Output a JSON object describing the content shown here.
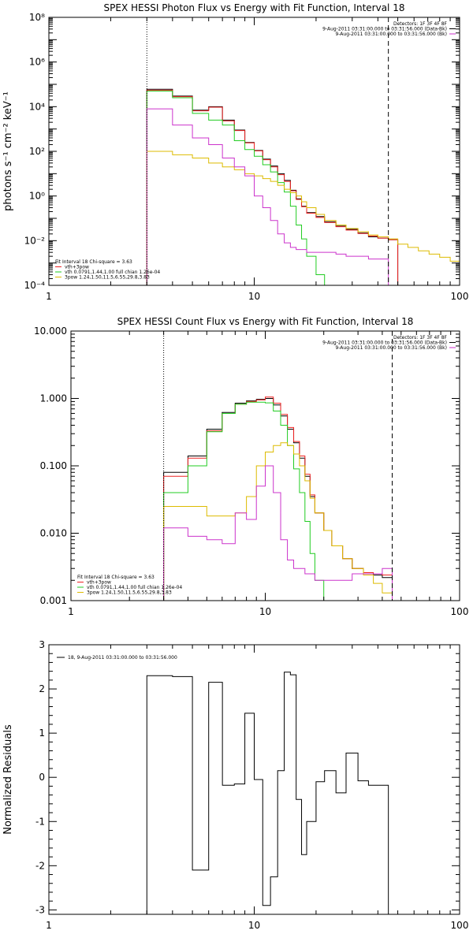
{
  "chart_data": [
    {
      "type": "line",
      "title": "SPEX HESSI Photon Flux vs Energy with Fit Function, Interval 18",
      "xlabel": "",
      "ylabel": "photons s⁻¹ cm⁻² keV⁻¹",
      "xscale": "log",
      "yscale": "log",
      "xlim": [
        1,
        100
      ],
      "ylim": [
        0.0001,
        100000000
      ],
      "x_ticks": [
        {
          "v": 1,
          "label": "1"
        },
        {
          "v": 10,
          "label": "10"
        },
        {
          "v": 100,
          "label": "100"
        }
      ],
      "y_ticks": [
        {
          "v": 0.0001,
          "label": "10⁻⁴"
        },
        {
          "v": 0.01,
          "label": "10⁻²"
        },
        {
          "v": 1,
          "label": "10⁰"
        },
        {
          "v": 100,
          "label": "10²"
        },
        {
          "v": 10000,
          "label": "10⁴"
        },
        {
          "v": 1000000,
          "label": "10⁶"
        },
        {
          "v": 100000000,
          "label": "10⁸"
        }
      ],
      "vlines": [
        {
          "x": 3,
          "style": "dotted"
        },
        {
          "x": 45,
          "style": "dashed"
        }
      ],
      "legend_top": [
        "Detectors: 1F 3F 4F 8F",
        "9-Aug-2011 03:31:00.000 to 03:31:56.000 (Data-Bk)",
        "9-Aug-2011 03:31:00.000 to 03:31:56.000 (Bk)"
      ],
      "legend_top_colors": [
        "#000000",
        "#000000",
        "#cc33cc"
      ],
      "legend_bottom": [
        "Fit Interval 18   Chi-square = 3.63",
        "vth+3pow",
        "vth 0.0791,1.44,1.00  full chian 1.26e-04",
        "3pow 1.24,1.50,11.5,6.55,29.8,3.83"
      ],
      "legend_bottom_colors": [
        "#000000",
        "#ee2222",
        "#22cc22",
        "#ddbb00"
      ],
      "edges": [
        3,
        4,
        5,
        6,
        7,
        8,
        9,
        10,
        11,
        12,
        13,
        14,
        15,
        16,
        17,
        18,
        20,
        22,
        25,
        28,
        32,
        36,
        40,
        45,
        50,
        56,
        63,
        71,
        80,
        90,
        100
      ],
      "series": [
        {
          "name": "",
          "color": "#000000",
          "values": [
            60000,
            30000,
            7000,
            10000,
            2500,
            900,
            250,
            110,
            45,
            22,
            10,
            5,
            1.8,
            0.75,
            0.35,
            0.18,
            0.12,
            0.07,
            0.045,
            0.032,
            0.022,
            0.015,
            0.013,
            0.011
          ]
        },
        {
          "name": "vth+3pow",
          "color": "#ee2222",
          "values": [
            55000,
            28000,
            6500,
            9500,
            2300,
            850,
            240,
            105,
            42,
            20,
            9,
            4.5,
            1.7,
            0.7,
            0.33,
            0.17,
            0.11,
            0.065,
            0.042,
            0.03,
            0.021,
            0.016,
            0.013,
            0.011
          ]
        },
        {
          "name": "vth",
          "color": "#22cc22",
          "values": [
            50000,
            25000,
            5000,
            2500,
            1500,
            300,
            120,
            60,
            25,
            12,
            4,
            1.5,
            0.35,
            0.05,
            0.012,
            0.002,
            0.0003,
            3e-05
          ]
        },
        {
          "name": "3pow",
          "color": "#ddbb00",
          "values": [
            100,
            70,
            50,
            30,
            20,
            15,
            10,
            8,
            6,
            4.5,
            3,
            2,
            1.4,
            1,
            0.55,
            0.3,
            0.15,
            0.08,
            0.05,
            0.035,
            0.025,
            0.018,
            0.015,
            0.012,
            0.007,
            0.005,
            0.0035,
            0.0025,
            0.0018,
            0.0012
          ]
        },
        {
          "name": "Bk",
          "color": "#cc33cc",
          "values": [
            8000,
            1500,
            400,
            200,
            50,
            20,
            8,
            1,
            0.3,
            0.08,
            0.02,
            0.008,
            0.005,
            0.004,
            0.004,
            0.003,
            0.003,
            0.003,
            0.0025,
            0.002,
            0.002,
            0.0015,
            0.0015
          ]
        }
      ]
    },
    {
      "type": "line",
      "title": "SPEX HESSI Count Flux vs Energy with Fit Function, Interval 18",
      "xlabel": "",
      "ylabel": "",
      "xscale": "log",
      "yscale": "log",
      "xlim": [
        1,
        100
      ],
      "ylim": [
        0.001,
        10
      ],
      "x_ticks": [
        {
          "v": 1,
          "label": "1"
        },
        {
          "v": 10,
          "label": "10"
        },
        {
          "v": 100,
          "label": "100"
        }
      ],
      "y_ticks": [
        {
          "v": 0.001,
          "label": "0.001"
        },
        {
          "v": 0.01,
          "label": "0.010"
        },
        {
          "v": 0.1,
          "label": "0.100"
        },
        {
          "v": 1,
          "label": "1.000"
        },
        {
          "v": 10,
          "label": "10.000"
        }
      ],
      "vlines": [
        {
          "x": 3,
          "style": "dotted"
        },
        {
          "x": 45,
          "style": "dashed"
        }
      ],
      "legend_top": [
        "Detectors: 1F 3F 4F 8F",
        "9-Aug-2011 03:31:00.000 to 03:31:56.000 (Data-Bk)",
        "9-Aug-2011 03:31:00.000 to 03:31:56.000 (Bk)"
      ],
      "legend_top_colors": [
        "#000000",
        "#000000",
        "#cc33cc"
      ],
      "legend_bottom": [
        "Fit Interval 18   Chi-square = 3.63",
        "vth+3pow",
        "vth 0.0791,1.44,1.00  full chian 1.26e-04",
        "3pow 1.24,1.50,11.5,6.55,29.8,3.83"
      ],
      "legend_bottom_colors": [
        "#000000",
        "#ee2222",
        "#22cc22",
        "#ddbb00"
      ],
      "edges": [
        3,
        4,
        5,
        6,
        7,
        8,
        9,
        10,
        11,
        12,
        13,
        14,
        15,
        16,
        17,
        18,
        20,
        22,
        25,
        28,
        32,
        36,
        40,
        45,
        50,
        56,
        63,
        71,
        80,
        90,
        100
      ],
      "series": [
        {
          "name": "",
          "color": "#000000",
          "values": [
            0.08,
            0.14,
            0.35,
            0.62,
            0.85,
            0.92,
            0.97,
            1.0,
            0.8,
            0.55,
            0.35,
            0.22,
            0.13,
            0.07,
            0.035,
            0.02,
            0.011,
            0.0065,
            0.0042,
            0.003,
            0.0025,
            0.0024,
            0.0022
          ]
        },
        {
          "name": "vth+3pow",
          "color": "#ee2222",
          "values": [
            0.07,
            0.13,
            0.33,
            0.6,
            0.82,
            0.9,
            0.95,
            1.05,
            0.85,
            0.58,
            0.37,
            0.23,
            0.14,
            0.075,
            0.037,
            0.02,
            0.011,
            0.0065,
            0.0042,
            0.003,
            0.0026,
            0.0025,
            0.0024
          ]
        },
        {
          "name": "vth",
          "color": "#22cc22",
          "values": [
            0.04,
            0.1,
            0.32,
            0.6,
            0.82,
            0.88,
            0.88,
            0.86,
            0.65,
            0.4,
            0.2,
            0.09,
            0.04,
            0.015,
            0.005,
            0.002,
            0.0004
          ]
        },
        {
          "name": "3pow",
          "color": "#ddbb00",
          "values": [
            0.025,
            0.025,
            0.018,
            0.018,
            0.02,
            0.035,
            0.1,
            0.16,
            0.2,
            0.22,
            0.2,
            0.15,
            0.1,
            0.06,
            0.033,
            0.02,
            0.011,
            0.0065,
            0.0042,
            0.003,
            0.0024,
            0.0018,
            0.0013,
            0.0009,
            0.0006
          ]
        },
        {
          "name": "Bk",
          "color": "#cc33cc",
          "values": [
            0.012,
            0.009,
            0.008,
            0.007,
            0.02,
            0.016,
            0.05,
            0.1,
            0.04,
            0.008,
            0.004,
            0.003,
            0.003,
            0.0025,
            0.0025,
            0.002,
            0.002,
            0.002,
            0.002,
            0.0025,
            0.0025,
            0.0025,
            0.003
          ]
        }
      ]
    },
    {
      "type": "line",
      "title": "",
      "xlabel": "",
      "ylabel": "Normalized Residuals",
      "xscale": "log",
      "yscale": "linear",
      "xlim": [
        1,
        100
      ],
      "ylim": [
        -3.1,
        3
      ],
      "x_ticks": [
        {
          "v": 1,
          "label": "1"
        },
        {
          "v": 10,
          "label": "10"
        },
        {
          "v": 100,
          "label": "100"
        }
      ],
      "y_ticks": [
        {
          "v": -3,
          "label": "-3"
        },
        {
          "v": -2,
          "label": "-2"
        },
        {
          "v": -1,
          "label": "-1"
        },
        {
          "v": 0,
          "label": "0"
        },
        {
          "v": 1,
          "label": "1"
        },
        {
          "v": 2,
          "label": "2"
        },
        {
          "v": 3,
          "label": "3"
        }
      ],
      "legend_top": [
        "18,  9-Aug-2011 03:31:00.000 to 03:31:56.000"
      ],
      "edges": [
        3,
        4,
        5,
        6,
        7,
        8,
        9,
        10,
        11,
        12,
        13,
        14,
        15,
        16,
        17,
        18,
        20,
        22,
        25,
        28,
        32,
        36,
        40,
        45
      ],
      "series": [
        {
          "name": "",
          "color": "#000000",
          "values": [
            2.3,
            2.28,
            -2.1,
            2.15,
            -0.18,
            -0.15,
            1.45,
            -0.05,
            -2.9,
            -2.25,
            0.15,
            2.38,
            2.32,
            -0.5,
            -1.75,
            -1.0,
            -0.1,
            0.15,
            -0.35,
            0.55,
            -0.08,
            -0.18,
            -0.18
          ]
        }
      ]
    }
  ]
}
